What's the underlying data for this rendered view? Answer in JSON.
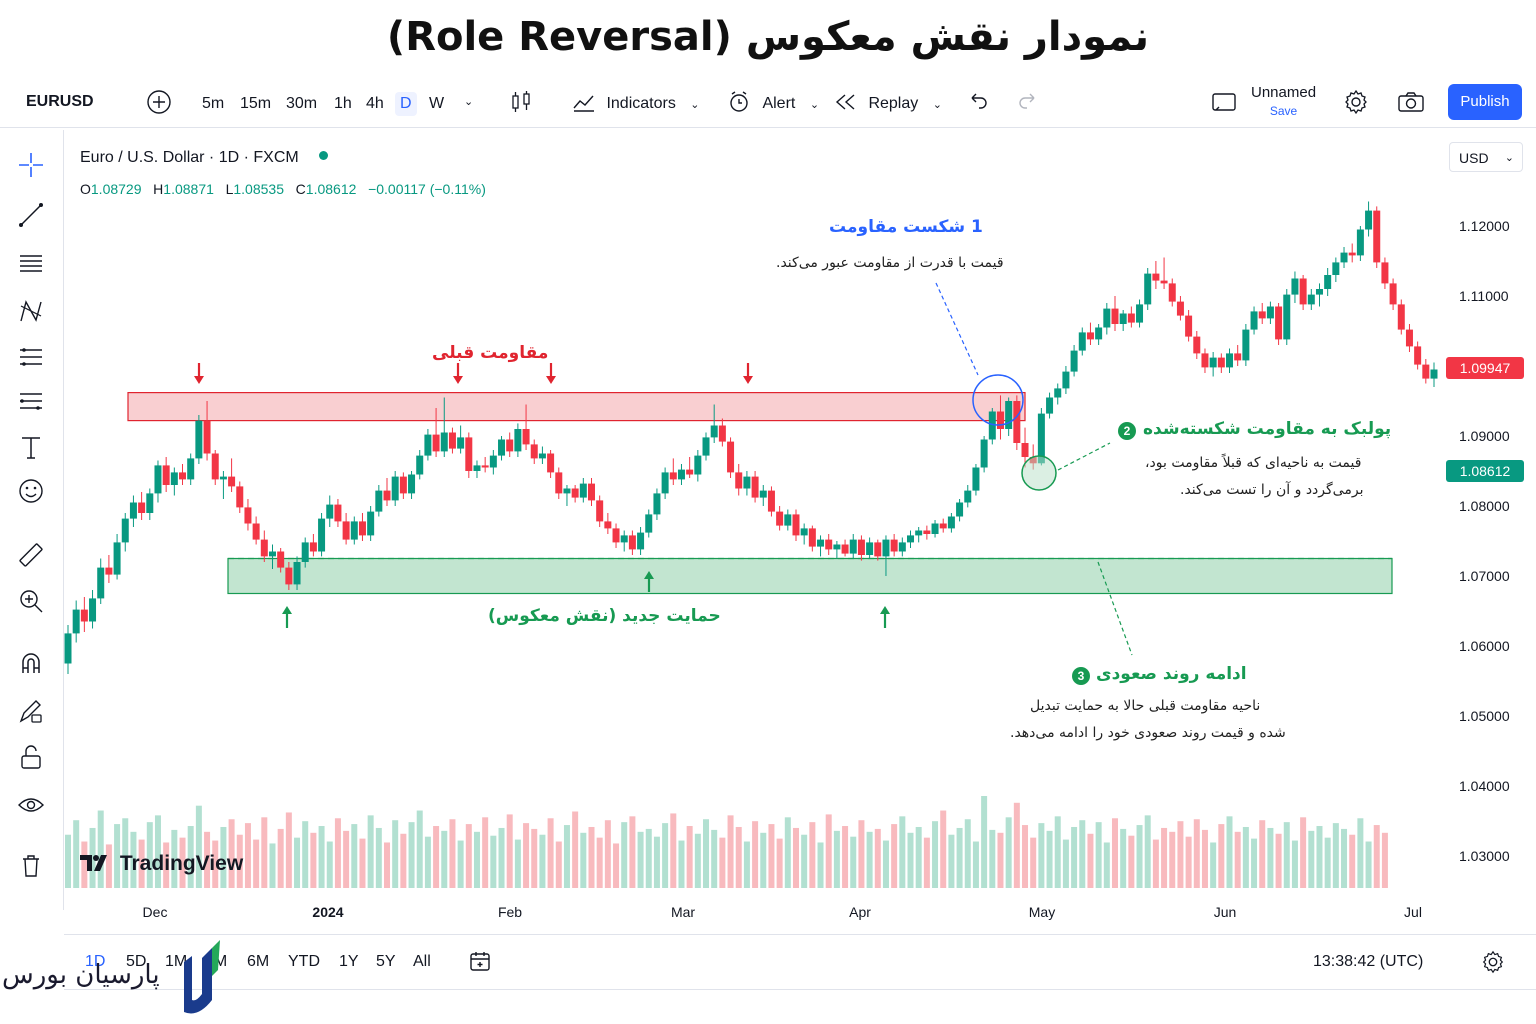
{
  "page_title": "نمودار نقش معکوس (Role Reversal)",
  "toolbar": {
    "symbol": "EURUSD",
    "timeframes": [
      "5m",
      "15m",
      "30m",
      "1h",
      "4h",
      "D",
      "W"
    ],
    "active_timeframe": "D",
    "indicators_label": "Indicators",
    "alert_label": "Alert",
    "replay_label": "Replay",
    "layout_name": "Unnamed",
    "save_label": "Save",
    "publish_label": "Publish"
  },
  "legend": {
    "title": "Euro / U.S. Dollar · 1D · FXCM",
    "open_label": "O",
    "open": "1.08729",
    "high_label": "H",
    "high": "1.08871",
    "low_label": "L",
    "low": "1.08535",
    "close_label": "C",
    "close": "1.08612",
    "change": "−0.00117 (−0.11%)"
  },
  "currency_selector": "USD",
  "price_axis": {
    "ticks": [
      "1.12000",
      "1.11000",
      "1.09000",
      "1.08000",
      "1.07000",
      "1.06000",
      "1.05000",
      "1.04000",
      "1.03000"
    ],
    "last_price_red": "1.09947",
    "last_price_green": "1.08612"
  },
  "time_axis": {
    "ticks": [
      "Dec",
      "2024",
      "Feb",
      "Mar",
      "Apr",
      "May",
      "Jun",
      "Jul"
    ]
  },
  "annotations": {
    "previous_resistance": "مقاومت قبلی",
    "new_support": "حمایت جدید (نقش معکوس)",
    "step1_title": "1 شکست مقاومت",
    "step1_text": "قیمت با قدرت از مقاومت عبور می‌کند.",
    "step2_title": "پولبک به مقاومت شکسته‌شده",
    "step2_num": "2",
    "step2_line1": "قیمت به ناحیه‌ای که قبلاً مقاومت بود،",
    "step2_line2": "برمی‌گردد و آن را تست می‌کند.",
    "step3_title": "ادامه روند صعودی",
    "step3_num": "3",
    "step3_line1": "ناحیه مقاومت قبلی حالا به حمایت تبدیل",
    "step3_line2": "شده و قیمت روند صعودی خود را ادامه می‌دهد."
  },
  "watermark": "TradingView",
  "bottom_bar": {
    "ranges": [
      "1D",
      "5D",
      "1M",
      "3M",
      "6M",
      "YTD",
      "1Y",
      "5Y",
      "All"
    ],
    "active_range": "1D",
    "clock": "13:38:42 (UTC)"
  },
  "brand_logo_text": "پارسیان بورس",
  "colors": {
    "up": "#089981",
    "down": "#f23645",
    "accent": "#2962ff",
    "resistance_zone": "#f8c7c9",
    "support_zone": "#b7e0c8"
  },
  "chart_data": {
    "type": "candlestick",
    "symbol": "EURUSD",
    "interval": "1D",
    "y_range": [
      1.025,
      1.127
    ],
    "zones": {
      "previous_resistance": [
        1.0922,
        1.0962
      ],
      "new_support": [
        1.0675,
        1.0725
      ]
    },
    "ohlc": [
      [
        1.0575,
        1.063,
        1.056,
        1.0618
      ],
      [
        1.0618,
        1.0665,
        1.0605,
        1.0652
      ],
      [
        1.0652,
        1.067,
        1.062,
        1.0635
      ],
      [
        1.0635,
        1.068,
        1.0625,
        1.0668
      ],
      [
        1.0668,
        1.0725,
        1.066,
        1.0712
      ],
      [
        1.0712,
        1.073,
        1.069,
        1.0702
      ],
      [
        1.0702,
        1.076,
        1.0695,
        1.0748
      ],
      [
        1.0748,
        1.079,
        1.0735,
        1.0782
      ],
      [
        1.0782,
        1.0815,
        1.077,
        1.0805
      ],
      [
        1.0805,
        1.082,
        1.078,
        1.079
      ],
      [
        1.079,
        1.0825,
        1.078,
        1.0818
      ],
      [
        1.0818,
        1.0865,
        1.0805,
        1.0858
      ],
      [
        1.0858,
        1.087,
        1.082,
        1.083
      ],
      [
        1.083,
        1.0855,
        1.0815,
        1.0848
      ],
      [
        1.0848,
        1.086,
        1.083,
        1.0838
      ],
      [
        1.0838,
        1.0875,
        1.083,
        1.0868
      ],
      [
        1.0868,
        1.093,
        1.086,
        1.0922
      ],
      [
        1.0922,
        1.095,
        1.0865,
        1.0875
      ],
      [
        1.0875,
        1.088,
        1.083,
        1.0838
      ],
      [
        1.0838,
        1.085,
        1.081,
        1.0842
      ],
      [
        1.0842,
        1.0868,
        1.082,
        1.0828
      ],
      [
        1.0828,
        1.0835,
        1.079,
        1.0798
      ],
      [
        1.0798,
        1.081,
        1.0765,
        1.0775
      ],
      [
        1.0775,
        1.0785,
        1.0745,
        1.0752
      ],
      [
        1.0752,
        1.0765,
        1.072,
        1.0728
      ],
      [
        1.0728,
        1.0745,
        1.071,
        1.0735
      ],
      [
        1.0735,
        1.074,
        1.0705,
        1.0712
      ],
      [
        1.0712,
        1.072,
        1.068,
        1.0688
      ],
      [
        1.0688,
        1.0728,
        1.068,
        1.072
      ],
      [
        1.072,
        1.0755,
        1.0712,
        1.0748
      ],
      [
        1.0748,
        1.076,
        1.0728,
        1.0735
      ],
      [
        1.0735,
        1.079,
        1.0728,
        1.0782
      ],
      [
        1.0782,
        1.0815,
        1.077,
        1.0802
      ],
      [
        1.0802,
        1.081,
        1.077,
        1.0778
      ],
      [
        1.0778,
        1.079,
        1.0745,
        1.0752
      ],
      [
        1.0752,
        1.0785,
        1.0745,
        1.0778
      ],
      [
        1.0778,
        1.079,
        1.075,
        1.0758
      ],
      [
        1.0758,
        1.08,
        1.075,
        1.0792
      ],
      [
        1.0792,
        1.083,
        1.0785,
        1.0822
      ],
      [
        1.0822,
        1.084,
        1.08,
        1.0808
      ],
      [
        1.0808,
        1.085,
        1.08,
        1.0842
      ],
      [
        1.0842,
        1.0848,
        1.081,
        1.0818
      ],
      [
        1.0818,
        1.085,
        1.081,
        1.0845
      ],
      [
        1.0845,
        1.088,
        1.0838,
        1.0872
      ],
      [
        1.0872,
        1.091,
        1.0865,
        1.0902
      ],
      [
        1.0902,
        1.094,
        1.087,
        1.0878
      ],
      [
        1.0878,
        1.0955,
        1.087,
        1.0905
      ],
      [
        1.0905,
        1.0912,
        1.0875,
        1.0882
      ],
      [
        1.0882,
        1.0915,
        1.0875,
        1.0898
      ],
      [
        1.0898,
        1.0905,
        1.084,
        1.085
      ],
      [
        1.085,
        1.0865,
        1.084,
        1.0858
      ],
      [
        1.0858,
        1.087,
        1.0848,
        1.0855
      ],
      [
        1.0855,
        1.088,
        1.0845,
        1.0872
      ],
      [
        1.0872,
        1.09,
        1.0865,
        1.0895
      ],
      [
        1.0895,
        1.0905,
        1.087,
        1.0878
      ],
      [
        1.0878,
        1.0918,
        1.087,
        1.091
      ],
      [
        1.091,
        1.0945,
        1.088,
        1.0888
      ],
      [
        1.0888,
        1.0895,
        1.086,
        1.0868
      ],
      [
        1.0868,
        1.0885,
        1.086,
        1.0875
      ],
      [
        1.0875,
        1.088,
        1.084,
        1.0848
      ],
      [
        1.0848,
        1.0855,
        1.081,
        1.0818
      ],
      [
        1.0818,
        1.083,
        1.08,
        1.0825
      ],
      [
        1.0825,
        1.083,
        1.0805,
        1.0812
      ],
      [
        1.0812,
        1.084,
        1.0805,
        1.0832
      ],
      [
        1.0832,
        1.084,
        1.08,
        1.0808
      ],
      [
        1.0808,
        1.0815,
        1.077,
        1.0778
      ],
      [
        1.0778,
        1.079,
        1.076,
        1.0768
      ],
      [
        1.0768,
        1.0775,
        1.074,
        1.0748
      ],
      [
        1.0748,
        1.0765,
        1.0735,
        1.0758
      ],
      [
        1.0758,
        1.0765,
        1.073,
        1.0738
      ],
      [
        1.0738,
        1.077,
        1.073,
        1.0762
      ],
      [
        1.0762,
        1.0795,
        1.0755,
        1.0788
      ],
      [
        1.0788,
        1.0825,
        1.078,
        1.0818
      ],
      [
        1.0818,
        1.0855,
        1.081,
        1.0848
      ],
      [
        1.0848,
        1.0868,
        1.083,
        1.0838
      ],
      [
        1.0838,
        1.086,
        1.083,
        1.0852
      ],
      [
        1.0852,
        1.087,
        1.084,
        1.0845
      ],
      [
        1.0845,
        1.088,
        1.0835,
        1.0872
      ],
      [
        1.0872,
        1.0905,
        1.0865,
        1.0898
      ],
      [
        1.0898,
        1.0945,
        1.089,
        1.0915
      ],
      [
        1.0915,
        1.0925,
        1.0885,
        1.0892
      ],
      [
        1.0892,
        1.0898,
        1.084,
        1.0848
      ],
      [
        1.0848,
        1.086,
        1.0815,
        1.0825
      ],
      [
        1.0825,
        1.085,
        1.0815,
        1.0842
      ],
      [
        1.0842,
        1.085,
        1.0805,
        1.0812
      ],
      [
        1.0812,
        1.083,
        1.08,
        1.0822
      ],
      [
        1.0822,
        1.0828,
        1.0785,
        1.0792
      ],
      [
        1.0792,
        1.08,
        1.0765,
        1.0772
      ],
      [
        1.0772,
        1.0795,
        1.0765,
        1.0788
      ],
      [
        1.0788,
        1.0795,
        1.075,
        1.0758
      ],
      [
        1.0758,
        1.0775,
        1.0745,
        1.0768
      ],
      [
        1.0768,
        1.0772,
        1.0735,
        1.0742
      ],
      [
        1.0742,
        1.0758,
        1.0728,
        1.0752
      ],
      [
        1.0752,
        1.076,
        1.073,
        1.0738
      ],
      [
        1.0738,
        1.075,
        1.0725,
        1.0745
      ],
      [
        1.0745,
        1.0752,
        1.0728,
        1.0732
      ],
      [
        1.0732,
        1.076,
        1.0725,
        1.0752
      ],
      [
        1.0752,
        1.0758,
        1.0722,
        1.073
      ],
      [
        1.073,
        1.0755,
        1.0725,
        1.0748
      ],
      [
        1.0748,
        1.0752,
        1.0722,
        1.0728
      ],
      [
        1.0728,
        1.0758,
        1.07,
        1.0752
      ],
      [
        1.0752,
        1.076,
        1.0728,
        1.0735
      ],
      [
        1.0735,
        1.0755,
        1.0728,
        1.0748
      ],
      [
        1.0748,
        1.0765,
        1.074,
        1.0758
      ],
      [
        1.0758,
        1.077,
        1.0748,
        1.0765
      ],
      [
        1.0765,
        1.0772,
        1.0752,
        1.076
      ],
      [
        1.076,
        1.078,
        1.0755,
        1.0775
      ],
      [
        1.0775,
        1.0782,
        1.0762,
        1.0768
      ],
      [
        1.0768,
        1.079,
        1.0762,
        1.0785
      ],
      [
        1.0785,
        1.081,
        1.0778,
        1.0805
      ],
      [
        1.0805,
        1.083,
        1.0798,
        1.0822
      ],
      [
        1.0822,
        1.086,
        1.0815,
        1.0855
      ],
      [
        1.0855,
        1.09,
        1.0848,
        1.0895
      ],
      [
        1.0895,
        1.094,
        1.0888,
        1.0935
      ],
      [
        1.0935,
        1.0958,
        1.0895,
        1.091
      ],
      [
        1.091,
        1.0955,
        1.09,
        1.095
      ],
      [
        1.095,
        1.0958,
        1.088,
        1.089
      ],
      [
        1.089,
        1.0912,
        1.0855,
        1.087
      ],
      [
        1.087,
        1.0888,
        1.0852,
        1.0861
      ],
      [
        1.0861,
        1.094,
        1.0858,
        1.0932
      ],
      [
        1.0932,
        1.0962,
        1.0925,
        1.0955
      ],
      [
        1.0955,
        1.0975,
        1.0945,
        1.0968
      ],
      [
        1.0968,
        1.1,
        1.096,
        1.0992
      ],
      [
        1.0992,
        1.103,
        1.0985,
        1.1022
      ],
      [
        1.1022,
        1.1055,
        1.1015,
        1.1048
      ],
      [
        1.1048,
        1.1062,
        1.103,
        1.1038
      ],
      [
        1.1038,
        1.106,
        1.103,
        1.1055
      ],
      [
        1.1055,
        1.109,
        1.1045,
        1.1082
      ],
      [
        1.1082,
        1.11,
        1.105,
        1.106
      ],
      [
        1.106,
        1.108,
        1.105,
        1.1075
      ],
      [
        1.1075,
        1.1085,
        1.1055,
        1.1062
      ],
      [
        1.1062,
        1.1095,
        1.1055,
        1.1088
      ],
      [
        1.1088,
        1.114,
        1.108,
        1.1132
      ],
      [
        1.1132,
        1.115,
        1.111,
        1.1122
      ],
      [
        1.1122,
        1.1155,
        1.111,
        1.1118
      ],
      [
        1.1118,
        1.1125,
        1.1085,
        1.1092
      ],
      [
        1.1092,
        1.11,
        1.1065,
        1.1072
      ],
      [
        1.1072,
        1.108,
        1.1035,
        1.1042
      ],
      [
        1.1042,
        1.105,
        1.101,
        1.1018
      ],
      [
        1.1018,
        1.1025,
        1.099,
        1.0998
      ],
      [
        1.0998,
        1.102,
        1.0985,
        1.1012
      ],
      [
        1.1012,
        1.1018,
        1.099,
        1.0998
      ],
      [
        1.0998,
        1.1025,
        1.099,
        1.1018
      ],
      [
        1.1018,
        1.103,
        1.1,
        1.1008
      ],
      [
        1.1008,
        1.106,
        1.1,
        1.1052
      ],
      [
        1.1052,
        1.1085,
        1.1045,
        1.1078
      ],
      [
        1.1078,
        1.109,
        1.106,
        1.1068
      ],
      [
        1.1068,
        1.1092,
        1.106,
        1.1085
      ],
      [
        1.1085,
        1.109,
        1.103,
        1.1038
      ],
      [
        1.1038,
        1.111,
        1.103,
        1.1102
      ],
      [
        1.1102,
        1.1135,
        1.109,
        1.1125
      ],
      [
        1.1125,
        1.113,
        1.108,
        1.1088
      ],
      [
        1.1088,
        1.111,
        1.108,
        1.1102
      ],
      [
        1.1102,
        1.1118,
        1.1085,
        1.111
      ],
      [
        1.111,
        1.114,
        1.11,
        1.113
      ],
      [
        1.113,
        1.1155,
        1.112,
        1.1148
      ],
      [
        1.1148,
        1.117,
        1.114,
        1.1162
      ],
      [
        1.1162,
        1.1175,
        1.1148,
        1.1158
      ],
      [
        1.1158,
        1.12,
        1.115,
        1.1195
      ],
      [
        1.1195,
        1.1235,
        1.1185,
        1.1222
      ],
      [
        1.1222,
        1.1228,
        1.114,
        1.1148
      ],
      [
        1.1148,
        1.1155,
        1.111,
        1.1118
      ],
      [
        1.1118,
        1.1125,
        1.108,
        1.1088
      ],
      [
        1.1088,
        1.1095,
        1.1045,
        1.1052
      ],
      [
        1.1052,
        1.106,
        1.102,
        1.1028
      ],
      [
        1.1028,
        1.1035,
        1.0995,
        1.1002
      ],
      [
        1.1002,
        1.101,
        1.0975,
        1.0982
      ],
      [
        1.0982,
        1.1005,
        1.097,
        1.0995
      ]
    ],
    "volume": [
      55,
      70,
      48,
      62,
      80,
      45,
      66,
      72,
      58,
      50,
      68,
      75,
      47,
      60,
      52,
      64,
      85,
      58,
      49,
      63,
      71,
      55,
      67,
      50,
      73,
      46,
      61,
      78,
      52,
      69,
      57,
      64,
      48,
      72,
      59,
      66,
      51,
      75,
      62,
      47,
      70,
      56,
      68,
      80,
      53,
      64,
      59,
      71,
      49,
      66,
      58,
      73,
      54,
      62,
      76,
      50,
      67,
      61,
      55,
      72,
      48,
      65,
      79,
      57,
      63,
      52,
      70,
      46,
      68,
      74,
      58,
      61,
      53,
      67,
      77,
      49,
      64,
      56,
      71,
      60,
      52,
      75,
      63,
      48,
      69,
      57,
      66,
      51,
      73,
      62,
      55,
      68,
      47,
      76,
      59,
      64,
      53,
      70,
      58,
      61,
      49,
      66,
      74,
      57,
      63,
      52,
      69,
      80,
      55,
      62,
      71,
      48,
      95,
      60,
      57,
      73,
      88,
      65,
      52,
      67,
      59,
      74,
      50,
      63,
      70,
      56,
      68,
      47,
      72,
      61,
      54,
      65,
      75,
      50,
      62,
      58,
      69,
      53,
      71,
      60,
      47,
      66,
      74,
      58,
      63,
      51,
      70,
      62,
      56,
      68,
      49,
      73,
      59,
      64,
      52,
      67,
      61,
      55,
      72,
      48,
      65,
      57
    ]
  }
}
